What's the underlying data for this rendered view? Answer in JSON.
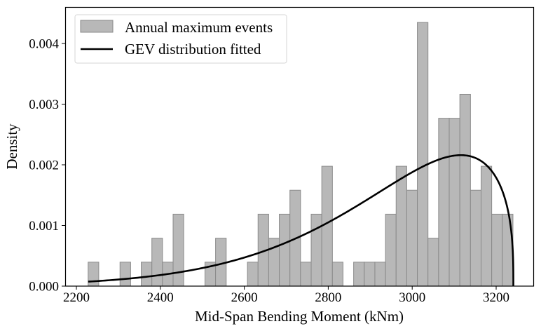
{
  "chart_data": {
    "type": "bar",
    "title": "",
    "xlabel": "Mid-Span Bending Moment (kNm)",
    "ylabel": "Density",
    "xlim": [
      2175,
      3290
    ],
    "ylim": [
      0,
      0.00455
    ],
    "grid": false,
    "xticks": [
      2200,
      2400,
      2600,
      2800,
      3000,
      3200
    ],
    "xtick_labels": [
      "2200",
      "2400",
      "2600",
      "2800",
      "3000",
      "3200"
    ],
    "yticks": [
      0,
      0.001,
      0.002,
      0.003,
      0.004
    ],
    "ytick_labels": [
      "0.000",
      "0.001",
      "0.002",
      "0.003",
      "0.004"
    ],
    "legend": {
      "placement": "top-left",
      "entries": [
        {
          "label": "Annual maximum events",
          "kind": "patch"
        },
        {
          "label": "GEV distribution fitted",
          "kind": "line"
        }
      ]
    },
    "histogram": {
      "name": "Annual maximum events",
      "bin_start": 2228,
      "bin_width": 25.3,
      "counts": [
        1,
        0,
        0,
        1,
        0,
        1,
        2,
        1,
        3,
        0,
        0,
        1,
        2,
        0,
        0,
        1,
        3,
        2,
        3,
        4,
        1,
        3,
        5,
        1,
        0,
        1,
        1,
        1,
        3,
        5,
        4,
        11,
        2,
        7,
        7,
        8,
        4,
        5,
        3,
        3
      ],
      "density_values": [
        0.000395,
        0,
        0,
        0.000395,
        0,
        0.000395,
        0.00079,
        0.000395,
        0.001186,
        0,
        0,
        0.000395,
        0.00079,
        0,
        0,
        0.000395,
        0.001186,
        0.00079,
        0.001186,
        0.001581,
        0.000395,
        0.001186,
        0.001976,
        0.000395,
        0,
        0.000395,
        0.000395,
        0.000395,
        0.001186,
        0.001976,
        0.001581,
        0.004348,
        0.00079,
        0.002767,
        0.002767,
        0.003162,
        0.001581,
        0.001976,
        0.001186,
        0.001186
      ],
      "fill_color": "#b8b8b8",
      "edge_color": "#8a8a8a"
    },
    "gev_curve": {
      "name": "GEV distribution fitted",
      "x_start": 2228,
      "x_end": 3241,
      "upper_bound": 3241,
      "shape_k": 1.35,
      "scale": 340,
      "peak_x": 3116,
      "peak_density": 0.0021,
      "color": "#000000"
    }
  }
}
